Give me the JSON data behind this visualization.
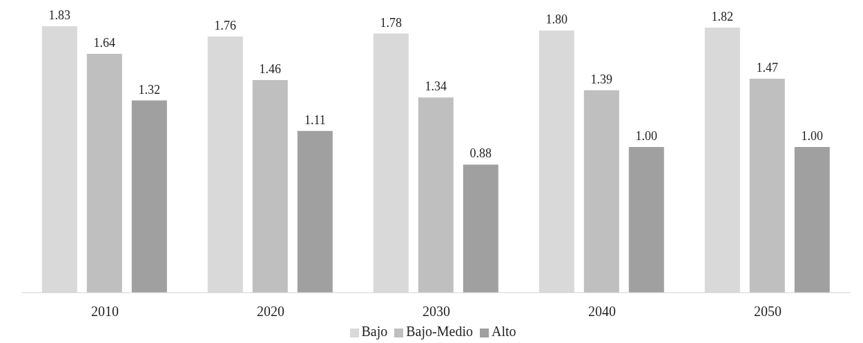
{
  "chart_data": {
    "type": "bar",
    "categories": [
      "2010",
      "2020",
      "2030",
      "2040",
      "2050"
    ],
    "series": [
      {
        "name": "Bajo",
        "color": "#d9d9d9",
        "values": [
          1.83,
          1.76,
          1.78,
          1.8,
          1.82
        ],
        "value_labels": [
          "1.83",
          "1.76",
          "1.78",
          "1.80",
          "1.82"
        ]
      },
      {
        "name": "Bajo-Medio",
        "color": "#bfbfbf",
        "values": [
          1.64,
          1.46,
          1.34,
          1.39,
          1.47
        ],
        "value_labels": [
          "1.64",
          "1.46",
          "1.34",
          "1.39",
          "1.47"
        ]
      },
      {
        "name": "Alto",
        "color": "#a0a0a0",
        "values": [
          1.32,
          1.11,
          0.88,
          1.0,
          1.0
        ],
        "value_labels": [
          "1.32",
          "1.11",
          "0.88",
          "1.00",
          "1.00"
        ]
      }
    ],
    "legend": "bottom",
    "grid": false
  }
}
